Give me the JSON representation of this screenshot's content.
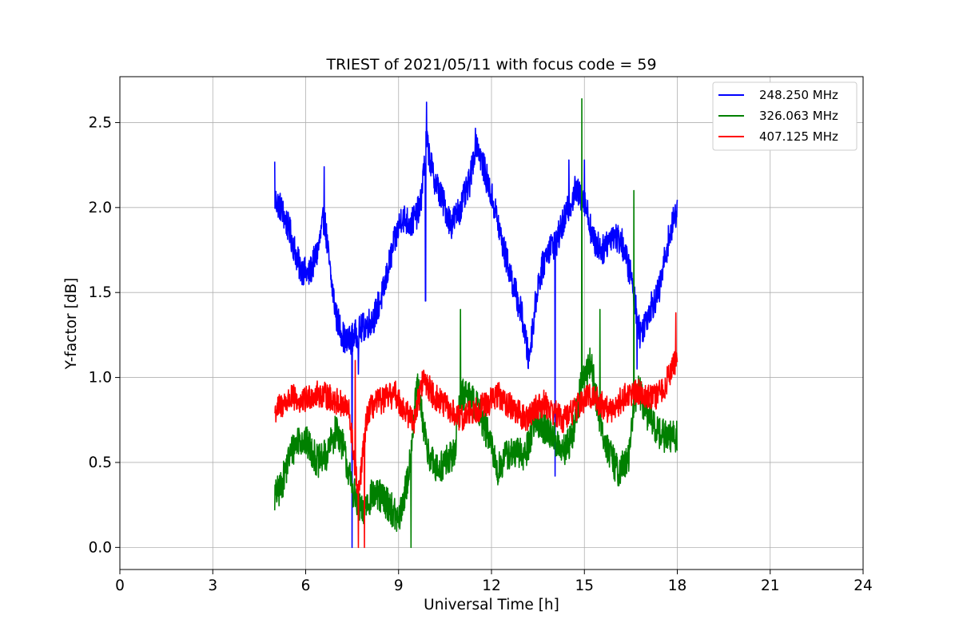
{
  "chart_data": {
    "type": "line",
    "title": "TRIEST of 2021/05/11 with focus code = 59",
    "xlabel": "Universal Time [h]",
    "ylabel": "Y-factor [dB]",
    "xlim": [
      0,
      24
    ],
    "ylim": [
      -0.13,
      2.77
    ],
    "xticks": [
      0,
      3,
      6,
      9,
      12,
      15,
      18,
      21,
      24
    ],
    "yticks": [
      0.0,
      0.5,
      1.0,
      1.5,
      2.0,
      2.5
    ],
    "xtick_labels": [
      "0",
      "3",
      "6",
      "9",
      "12",
      "15",
      "18",
      "21",
      "24"
    ],
    "ytick_labels": [
      "0.0",
      "0.5",
      "1.0",
      "1.5",
      "2.0",
      "2.5"
    ],
    "grid": true,
    "legend_position": "top-right",
    "series": [
      {
        "name": "248.250 MHz",
        "color": "#0000ff",
        "noise": 0.09,
        "x": [
          5.0,
          5.2,
          5.5,
          5.8,
          6.1,
          6.4,
          6.6,
          6.8,
          7.0,
          7.3,
          7.6,
          7.9,
          8.2,
          8.5,
          8.8,
          9.1,
          9.4,
          9.7,
          9.9,
          10.1,
          10.4,
          10.7,
          11.0,
          11.3,
          11.5,
          11.8,
          12.1,
          12.4,
          12.7,
          13.0,
          13.2,
          13.5,
          13.8,
          14.1,
          14.4,
          14.7,
          15.0,
          15.3,
          15.6,
          15.9,
          16.2,
          16.5,
          16.8,
          17.1,
          17.4,
          17.7,
          18.0
        ],
        "y": [
          2.05,
          2.0,
          1.85,
          1.65,
          1.6,
          1.75,
          1.95,
          1.6,
          1.35,
          1.2,
          1.25,
          1.3,
          1.35,
          1.5,
          1.75,
          1.95,
          1.9,
          2.0,
          2.4,
          2.2,
          2.05,
          1.9,
          2.0,
          2.15,
          2.4,
          2.2,
          2.0,
          1.75,
          1.55,
          1.35,
          1.1,
          1.55,
          1.75,
          1.8,
          1.95,
          2.1,
          2.05,
          1.8,
          1.75,
          1.85,
          1.8,
          1.6,
          1.25,
          1.4,
          1.5,
          1.8,
          2.0
        ],
        "spikes": [
          [
            5.0,
            2.27
          ],
          [
            7.5,
            0.0
          ],
          [
            7.7,
            1.02
          ],
          [
            9.87,
            1.45
          ],
          [
            9.9,
            2.62
          ],
          [
            14.05,
            0.42
          ],
          [
            14.5,
            2.28
          ],
          [
            15.0,
            2.28
          ],
          [
            16.7,
            1.05
          ],
          [
            6.6,
            2.24
          ]
        ]
      },
      {
        "name": "326.063 MHz",
        "color": "#008000",
        "noise": 0.1,
        "x": [
          5.0,
          5.2,
          5.5,
          5.8,
          6.1,
          6.4,
          6.7,
          7.0,
          7.2,
          7.5,
          7.8,
          8.1,
          8.4,
          8.7,
          9.0,
          9.3,
          9.6,
          9.9,
          10.2,
          10.5,
          10.8,
          11.0,
          11.3,
          11.6,
          11.9,
          12.2,
          12.5,
          12.8,
          13.1,
          13.4,
          13.7,
          14.0,
          14.3,
          14.6,
          14.9,
          15.2,
          15.5,
          15.8,
          16.1,
          16.4,
          16.7,
          17.0,
          17.3,
          17.6,
          18.0
        ],
        "y": [
          0.3,
          0.35,
          0.55,
          0.65,
          0.6,
          0.5,
          0.55,
          0.7,
          0.6,
          0.35,
          0.2,
          0.3,
          0.3,
          0.25,
          0.15,
          0.4,
          0.95,
          0.6,
          0.45,
          0.5,
          0.55,
          0.9,
          0.9,
          0.8,
          0.65,
          0.45,
          0.55,
          0.55,
          0.55,
          0.75,
          0.7,
          0.65,
          0.55,
          0.65,
          0.95,
          1.1,
          0.75,
          0.55,
          0.45,
          0.5,
          0.95,
          0.8,
          0.7,
          0.65,
          0.65
        ],
        "spikes": [
          [
            14.92,
            2.64
          ],
          [
            16.6,
            2.1
          ],
          [
            11.0,
            1.4
          ],
          [
            9.4,
            0.0
          ],
          [
            15.5,
            1.4
          ]
        ]
      },
      {
        "name": "407.125 MHz",
        "color": "#ff0000",
        "noise": 0.08,
        "x": [
          5.0,
          5.3,
          5.6,
          5.9,
          6.2,
          6.5,
          6.8,
          7.1,
          7.4,
          7.7,
          8.0,
          8.3,
          8.6,
          8.9,
          9.2,
          9.5,
          9.8,
          10.1,
          10.4,
          10.7,
          11.0,
          11.3,
          11.6,
          11.9,
          12.2,
          12.5,
          12.8,
          13.1,
          13.4,
          13.7,
          14.0,
          14.3,
          14.6,
          14.9,
          15.2,
          15.5,
          15.8,
          16.1,
          16.4,
          16.7,
          17.0,
          17.3,
          17.6,
          17.8,
          18.0
        ],
        "y": [
          0.8,
          0.85,
          0.88,
          0.85,
          0.9,
          0.9,
          0.88,
          0.85,
          0.8,
          0.3,
          0.8,
          0.85,
          0.88,
          0.9,
          0.8,
          0.75,
          1.0,
          0.9,
          0.85,
          0.8,
          0.75,
          0.8,
          0.82,
          0.85,
          0.9,
          0.85,
          0.8,
          0.75,
          0.82,
          0.85,
          0.8,
          0.75,
          0.8,
          0.85,
          0.9,
          0.85,
          0.8,
          0.85,
          0.9,
          0.92,
          0.9,
          0.88,
          0.95,
          1.05,
          1.1
        ],
        "spikes": [
          [
            7.7,
            0.0
          ],
          [
            7.9,
            0.0
          ],
          [
            17.95,
            1.38
          ],
          [
            7.6,
            1.1
          ]
        ]
      }
    ]
  }
}
